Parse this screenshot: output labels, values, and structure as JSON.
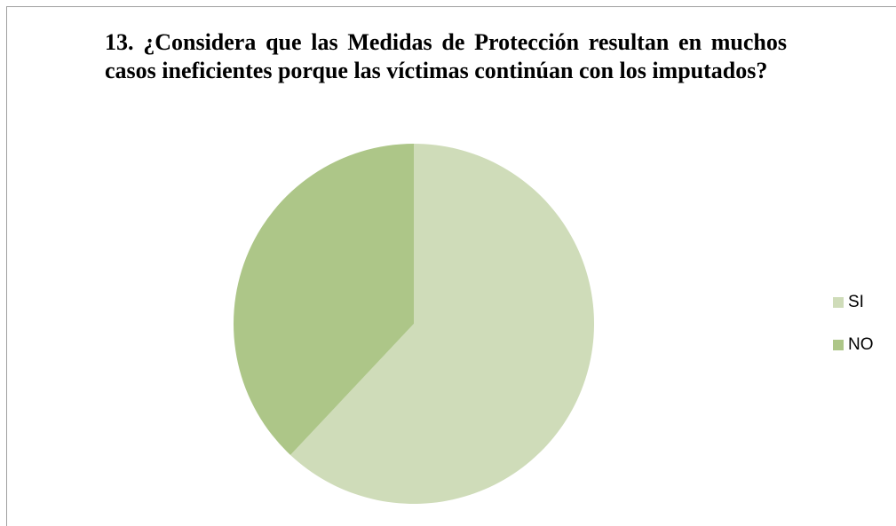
{
  "chart_data": {
    "type": "pie",
    "title": "13. ¿Considera que las Medidas de Protección resultan en muchos casos ineficientes porque las víctimas continúan con los imputados?",
    "categories": [
      "SI",
      "NO"
    ],
    "values": [
      62,
      38
    ],
    "colors": [
      "#cfdcb9",
      "#adc688"
    ],
    "legend": "right"
  }
}
